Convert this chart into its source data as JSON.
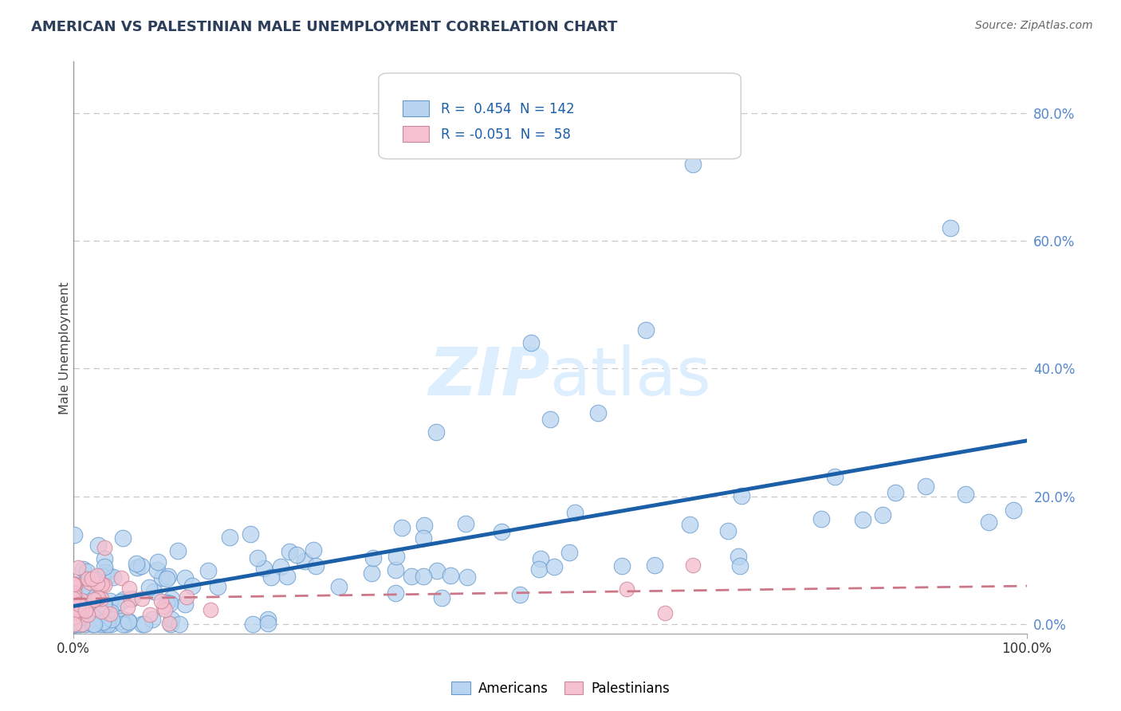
{
  "title": "AMERICAN VS PALESTINIAN MALE UNEMPLOYMENT CORRELATION CHART",
  "source_text": "Source: ZipAtlas.com",
  "ylabel": "Male Unemployment",
  "ytick_labels": [
    "0.0%",
    "20.0%",
    "40.0%",
    "60.0%",
    "80.0%"
  ],
  "ytick_values": [
    0.0,
    0.2,
    0.4,
    0.6,
    0.8
  ],
  "xlim": [
    0.0,
    1.0
  ],
  "ylim": [
    -0.015,
    0.88
  ],
  "r_american": 0.454,
  "n_american": 142,
  "r_palestinian": -0.051,
  "n_palestinian": 58,
  "legend_label_american": "Americans",
  "legend_label_palestinian": "Palestinians",
  "color_american_face": "#b8d4f0",
  "color_american_edge": "#6699cc",
  "color_american_line": "#1a5fa8",
  "color_palestinian_face": "#f5c0d0",
  "color_palestinian_edge": "#cc8899",
  "color_palestinian_line": "#cc7788",
  "watermark_color": "#ddeeff",
  "background_color": "#ffffff",
  "grid_color": "#c8c8c8",
  "title_color": "#2c3e5a",
  "ytick_color": "#5588cc",
  "xtick_color": "#333333"
}
